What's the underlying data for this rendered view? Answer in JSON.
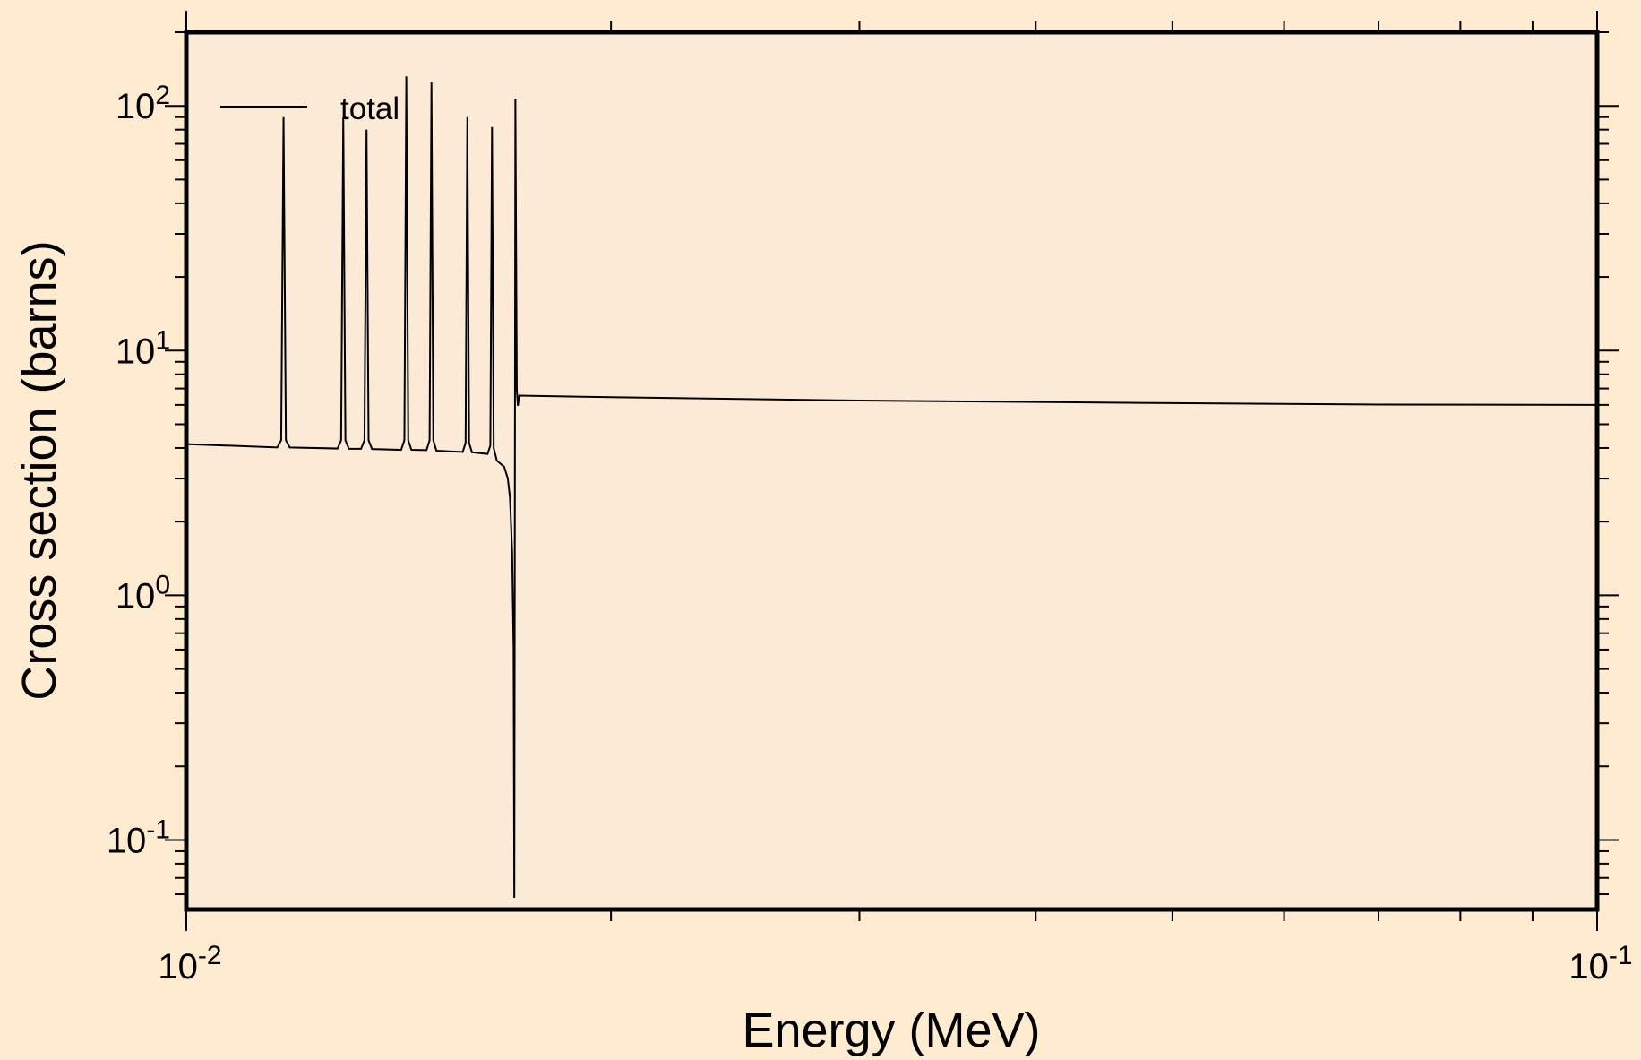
{
  "colors": {
    "page_background": "#feebd0",
    "plot_background": "#fbebd6",
    "line": "#000000",
    "frame": "#000000"
  },
  "chart_data": {
    "type": "line",
    "title": "",
    "xlabel": "Energy (MeV)",
    "ylabel": "Cross section (barns)",
    "x_scale": "log",
    "y_scale": "log",
    "xlim": [
      0.01,
      0.1
    ],
    "ylim": [
      0.052,
      200
    ],
    "x_ticks": [
      {
        "base": "10",
        "exp": "-2",
        "value": 0.01
      },
      {
        "base": "10",
        "exp": "-1",
        "value": 0.1
      }
    ],
    "y_ticks": [
      {
        "base": "10",
        "exp": "-1",
        "value": 0.1
      },
      {
        "base": "10",
        "exp": "0",
        "value": 1
      },
      {
        "base": "10",
        "exp": "1",
        "value": 10
      },
      {
        "base": "10",
        "exp": "2",
        "value": 100
      }
    ],
    "grid": false,
    "legend": {
      "placement": "top-left"
    },
    "series": [
      {
        "name": "total",
        "color": "#000000",
        "points": [
          [
            0.01,
            4.15
          ],
          [
            0.0116,
            4.02
          ],
          [
            0.011675,
            4.3
          ],
          [
            0.01172,
            90
          ],
          [
            0.011765,
            4.3
          ],
          [
            0.01184,
            4.02
          ],
          [
            0.0128,
            3.98
          ],
          [
            0.012875,
            4.3
          ],
          [
            0.01292,
            90
          ],
          [
            0.012965,
            4.3
          ],
          [
            0.01304,
            3.97
          ],
          [
            0.0133,
            3.97
          ],
          [
            0.013375,
            4.3
          ],
          [
            0.01342,
            80
          ],
          [
            0.013465,
            4.3
          ],
          [
            0.01354,
            3.96
          ],
          [
            0.0142,
            3.93
          ],
          [
            0.014275,
            4.3
          ],
          [
            0.01432,
            132
          ],
          [
            0.014365,
            4.3
          ],
          [
            0.01444,
            3.93
          ],
          [
            0.0148,
            3.92
          ],
          [
            0.014875,
            4.3
          ],
          [
            0.01492,
            125
          ],
          [
            0.014965,
            4.3
          ],
          [
            0.01504,
            3.9
          ],
          [
            0.0157,
            3.85
          ],
          [
            0.015775,
            4.2
          ],
          [
            0.01582,
            90
          ],
          [
            0.015865,
            4.2
          ],
          [
            0.01594,
            3.84
          ],
          [
            0.01635,
            3.78
          ],
          [
            0.016425,
            4.1
          ],
          [
            0.01647,
            82
          ],
          [
            0.016515,
            4.0
          ],
          [
            0.0166,
            3.55
          ],
          [
            0.0168,
            3.35
          ],
          [
            0.0169,
            3.0
          ],
          [
            0.01696,
            2.5
          ],
          [
            0.01702,
            1.5
          ],
          [
            0.01706,
            0.6
          ],
          [
            0.01708,
            0.058
          ],
          [
            0.01711,
            107
          ],
          [
            0.01715,
            6.9
          ],
          [
            0.01718,
            5.95
          ],
          [
            0.01722,
            6.55
          ],
          [
            0.02,
            6.45
          ],
          [
            0.03,
            6.25
          ],
          [
            0.05,
            6.1
          ],
          [
            0.07,
            6.02
          ],
          [
            0.1,
            6.0
          ]
        ]
      }
    ]
  }
}
